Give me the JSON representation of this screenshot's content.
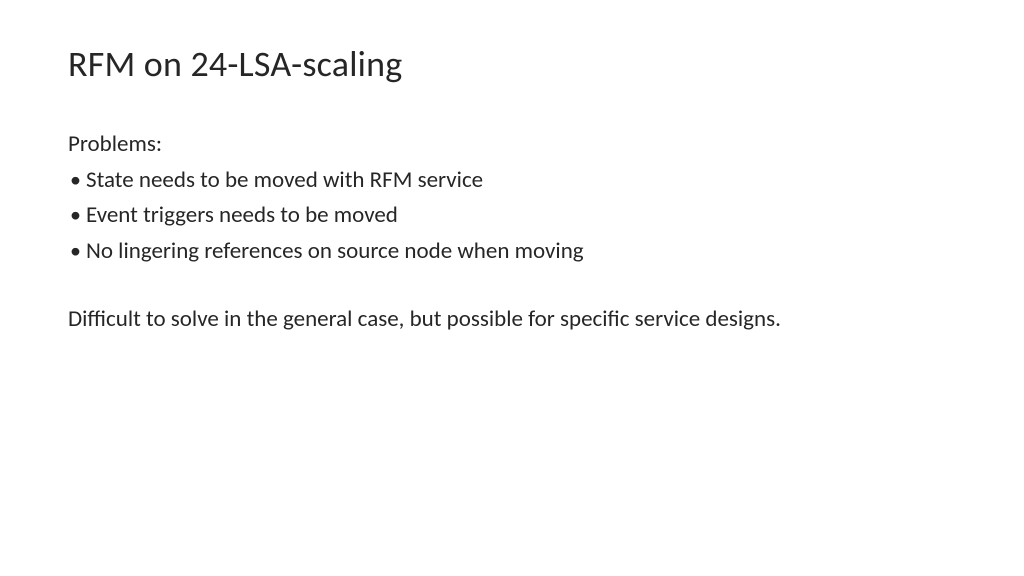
{
  "slide": {
    "title": "RFM on 24-LSA-scaling",
    "section_label": "Problems:",
    "bullets": [
      "State needs to be moved with RFM service",
      "Event triggers needs to be moved",
      "No lingering references on source node when moving"
    ],
    "body_text": "Difficult to solve in the general case, but possible for specific service designs.",
    "style": {
      "background_color": "#ffffff",
      "text_color": "#262626",
      "title_fontsize": 36,
      "body_fontsize": 23,
      "font_family": "Calibri"
    }
  }
}
